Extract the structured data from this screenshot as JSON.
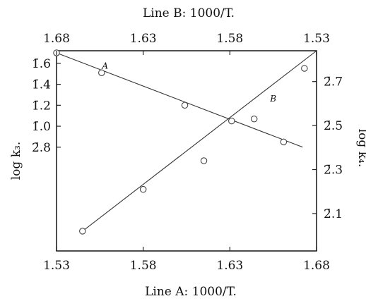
{
  "chart_data": {
    "type": "line",
    "top_title": "Line B:  1000/T.",
    "bottom_title": "Line A:  1000/T.",
    "left_ylabel": "log k₃.",
    "right_ylabel": "log k₄.",
    "bottom_axis": {
      "range": [
        1.53,
        1.68
      ],
      "ticks": [
        "1.53",
        "1.58",
        "1.63",
        "1.68"
      ],
      "tick_values": [
        1.53,
        1.58,
        1.63,
        1.68
      ]
    },
    "top_axis": {
      "range": [
        1.68,
        1.53
      ],
      "ticks": [
        "1.68",
        "1.63",
        "1.58",
        "1.53"
      ],
      "tick_values": [
        1.68,
        1.63,
        1.58,
        1.53
      ]
    },
    "left_axis": {
      "range": [
        -2.19,
        -0.28
      ],
      "ticks": [
        "2̄.8",
        "1̄.0",
        "1̄.2",
        "1̄.4",
        "1̄.6"
      ],
      "tick_values": [
        -1.2,
        -1.0,
        -0.8,
        -0.6,
        -0.4
      ]
    },
    "right_axis": {
      "range": [
        -2.07,
        -1.16
      ],
      "ticks": [
        "2̄.1",
        "2̄.3",
        "2̄.5",
        "2̄.7"
      ],
      "tick_values": [
        -1.9,
        -1.7,
        -1.5,
        -1.3
      ]
    },
    "series": [
      {
        "name": "A",
        "x_axis": "bottom",
        "y_axis": "left",
        "marker": "open-circle",
        "fit_line": {
          "x": [
            1.53,
            1.672
          ],
          "y": [
            -0.3,
            -1.2
          ]
        },
        "points": [
          {
            "x": 1.53,
            "y": -0.3
          },
          {
            "x": 1.556,
            "y": -0.49
          },
          {
            "x": 1.604,
            "y": -0.8
          },
          {
            "x": 1.631,
            "y": -0.95
          },
          {
            "x": 1.661,
            "y": -1.15
          }
        ]
      },
      {
        "name": "B",
        "x_axis": "top",
        "y_axis": "right",
        "marker": "open-circle",
        "fit_line": {
          "x": [
            1.665,
            1.53
          ],
          "y": [
            -1.98,
            -1.16
          ]
        },
        "points": [
          {
            "x": 1.665,
            "y": -1.98
          },
          {
            "x": 1.63,
            "y": -1.79
          },
          {
            "x": 1.595,
            "y": -1.66
          },
          {
            "x": 1.566,
            "y": -1.47
          },
          {
            "x": 1.537,
            "y": -1.24
          }
        ]
      }
    ],
    "annotations": [
      {
        "text": "A",
        "series": "A",
        "x": 1.558,
        "y": -0.45
      },
      {
        "text": "B",
        "series": "B",
        "x": 1.555,
        "y": -1.39
      }
    ],
    "grid": false
  }
}
